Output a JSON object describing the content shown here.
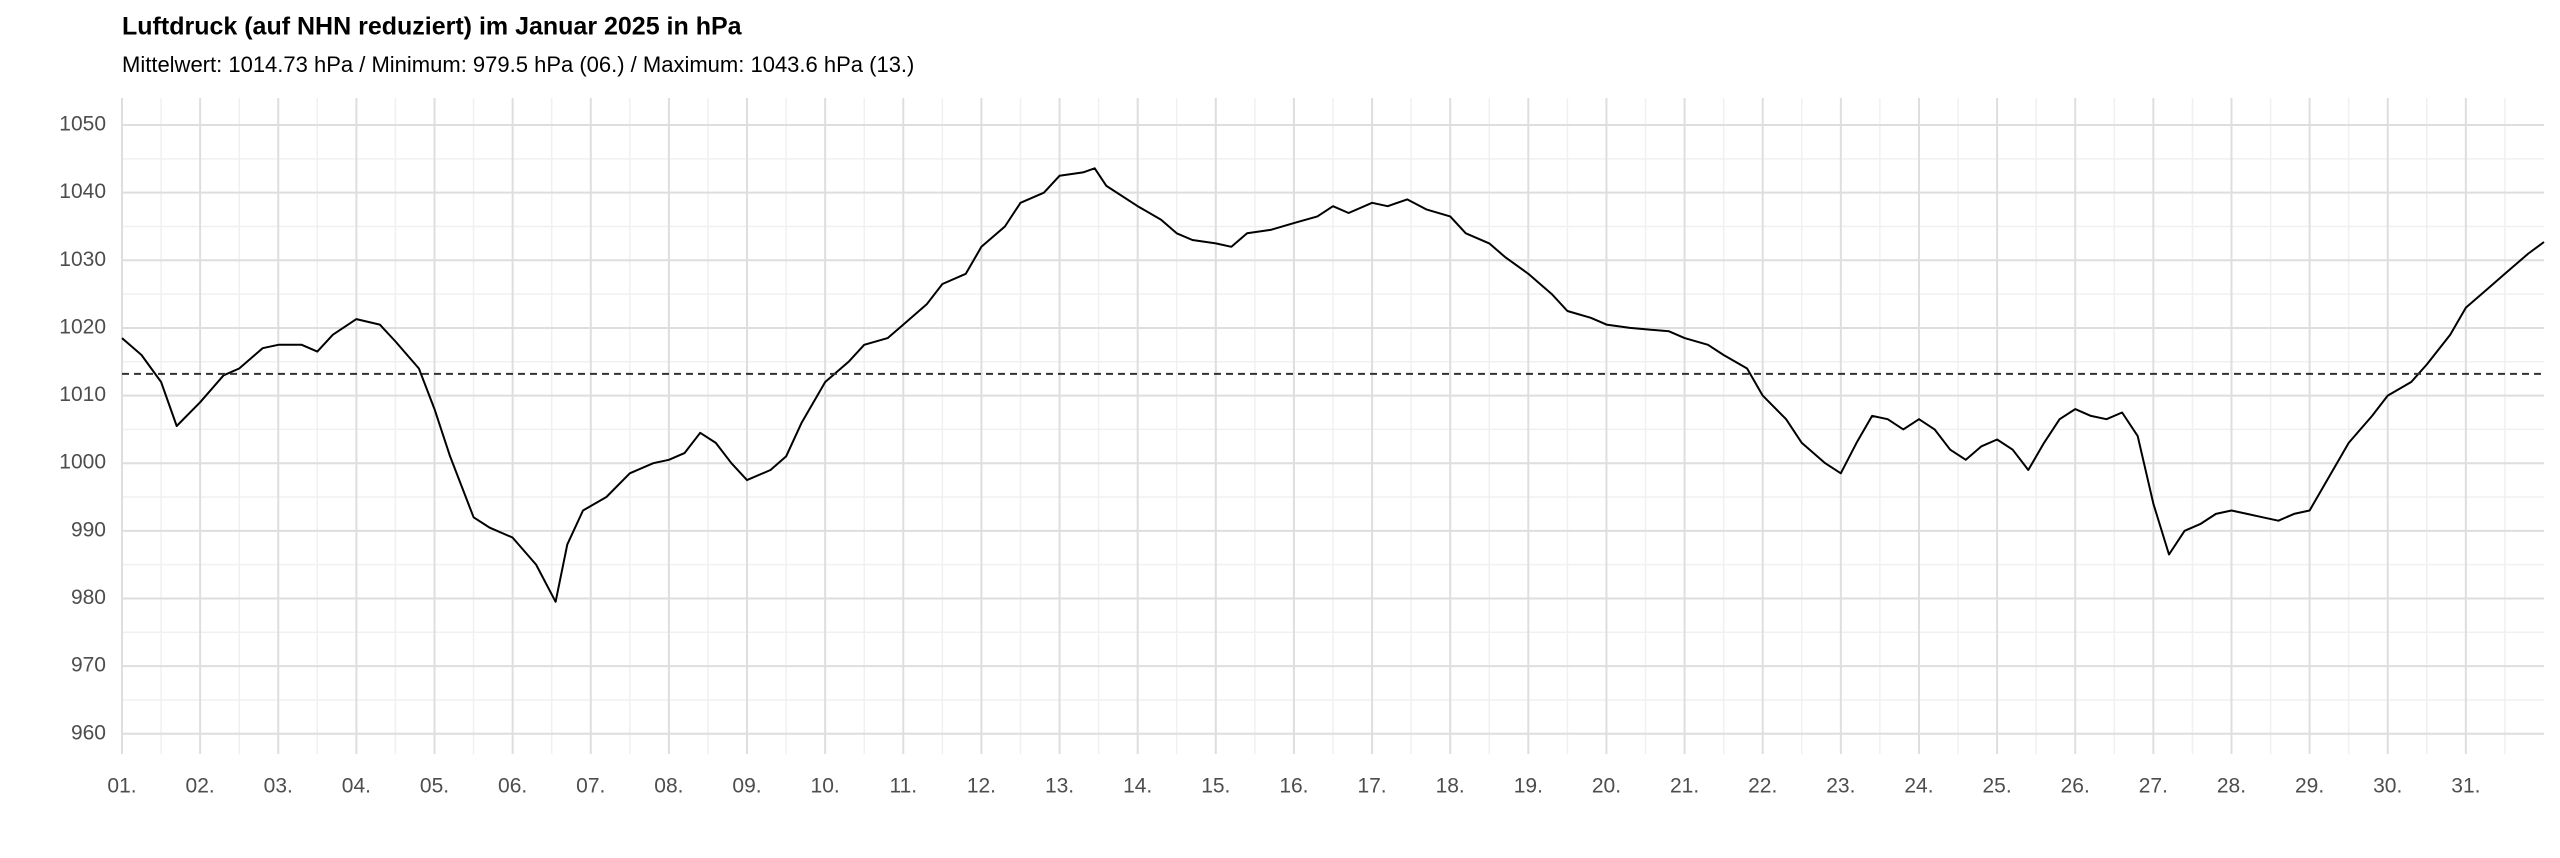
{
  "chart_data": {
    "type": "line",
    "title": "Luftdruck (auf NHN reduziert) im Januar 2025 in hPa",
    "subtitle": "Mittelwert: 1014.73 hPa / Minimum: 979.5 hPa (06.) / Maximum: 1043.6 hPa (13.)",
    "x": [
      1.0,
      1.25,
      1.5,
      1.7,
      2.0,
      2.3,
      2.5,
      2.8,
      3.0,
      3.3,
      3.5,
      3.7,
      4.0,
      4.3,
      4.5,
      4.8,
      5.0,
      5.2,
      5.5,
      5.7,
      6.0,
      6.3,
      6.55,
      6.7,
      6.9,
      7.2,
      7.5,
      7.8,
      8.0,
      8.2,
      8.4,
      8.6,
      8.8,
      9.0,
      9.3,
      9.5,
      9.7,
      10.0,
      10.3,
      10.5,
      10.8,
      11.0,
      11.3,
      11.5,
      11.8,
      12.0,
      12.3,
      12.5,
      12.8,
      13.0,
      13.3,
      13.45,
      13.6,
      14.0,
      14.3,
      14.5,
      14.7,
      15.0,
      15.2,
      15.4,
      15.7,
      16.0,
      16.3,
      16.5,
      16.7,
      17.0,
      17.2,
      17.45,
      17.7,
      18.0,
      18.2,
      18.5,
      18.7,
      19.0,
      19.3,
      19.5,
      19.8,
      20.0,
      20.3,
      20.5,
      20.8,
      21.0,
      21.3,
      21.5,
      21.8,
      22.0,
      22.3,
      22.5,
      22.8,
      23.0,
      23.2,
      23.4,
      23.6,
      23.8,
      24.0,
      24.2,
      24.4,
      24.6,
      24.8,
      25.0,
      25.2,
      25.4,
      25.6,
      25.8,
      26.0,
      26.2,
      26.4,
      26.6,
      26.8,
      27.0,
      27.2,
      27.4,
      27.6,
      27.8,
      28.0,
      28.2,
      28.4,
      28.6,
      28.8,
      29.0,
      29.2,
      29.5,
      29.8,
      30.0,
      30.3,
      30.5,
      30.8,
      31.0,
      31.3,
      31.5,
      31.8,
      32.0
    ],
    "series": [
      {
        "color": "#000000",
        "values": [
          1018.5,
          1016,
          1012,
          1005.5,
          1009,
          1013,
          1014,
          1017,
          1017.5,
          1017.5,
          1016.5,
          1019,
          1021.3,
          1020.5,
          1018,
          1014,
          1008,
          1001,
          992,
          990.5,
          989,
          985,
          979.5,
          988,
          993,
          995,
          998.5,
          1000,
          1000.5,
          1001.5,
          1004.5,
          1003,
          1000,
          997.5,
          999,
          1001,
          1006,
          1012,
          1015,
          1017.5,
          1018.5,
          1020.5,
          1023.5,
          1026.5,
          1028,
          1032,
          1035,
          1038.5,
          1040,
          1042.5,
          1043,
          1043.6,
          1041,
          1038,
          1036,
          1034,
          1033,
          1032.5,
          1032,
          1034,
          1034.5,
          1035.5,
          1036.5,
          1038,
          1037,
          1038.5,
          1038,
          1039,
          1037.5,
          1036.5,
          1034,
          1032.5,
          1030.5,
          1028,
          1025,
          1022.5,
          1021.5,
          1020.5,
          1020,
          1019.8,
          1019.5,
          1018.5,
          1017.5,
          1016,
          1014,
          1010,
          1006.5,
          1003,
          1000,
          998.5,
          1003,
          1007,
          1006.5,
          1005,
          1006.5,
          1005,
          1002,
          1000.5,
          1002.5,
          1003.5,
          1002,
          999,
          1003,
          1006.5,
          1008,
          1007,
          1006.5,
          1007.5,
          1004,
          994,
          986.5,
          990,
          991,
          992.5,
          993,
          992.5,
          992,
          991.5,
          992.5,
          993,
          997,
          1003,
          1007,
          1010,
          1012,
          1014.6,
          1019,
          1023,
          1026,
          1028,
          1031,
          1032.7
        ]
      }
    ],
    "reference_line": 1013.2,
    "xlim": [
      1,
      32
    ],
    "xticks": [
      {
        "value": 1,
        "label": "01."
      },
      {
        "value": 2,
        "label": "02."
      },
      {
        "value": 3,
        "label": "03."
      },
      {
        "value": 4,
        "label": "04."
      },
      {
        "value": 5,
        "label": "05."
      },
      {
        "value": 6,
        "label": "06."
      },
      {
        "value": 7,
        "label": "07."
      },
      {
        "value": 8,
        "label": "08."
      },
      {
        "value": 9,
        "label": "09."
      },
      {
        "value": 10,
        "label": "10."
      },
      {
        "value": 11,
        "label": "11."
      },
      {
        "value": 12,
        "label": "12."
      },
      {
        "value": 13,
        "label": "13."
      },
      {
        "value": 14,
        "label": "14."
      },
      {
        "value": 15,
        "label": "15."
      },
      {
        "value": 16,
        "label": "16."
      },
      {
        "value": 17,
        "label": "17."
      },
      {
        "value": 18,
        "label": "18."
      },
      {
        "value": 19,
        "label": "19."
      },
      {
        "value": 20,
        "label": "20."
      },
      {
        "value": 21,
        "label": "21."
      },
      {
        "value": 22,
        "label": "22."
      },
      {
        "value": 23,
        "label": "23."
      },
      {
        "value": 24,
        "label": "24."
      },
      {
        "value": 25,
        "label": "25."
      },
      {
        "value": 26,
        "label": "26."
      },
      {
        "value": 27,
        "label": "27."
      },
      {
        "value": 28,
        "label": "28."
      },
      {
        "value": 29,
        "label": "29."
      },
      {
        "value": 30,
        "label": "30."
      },
      {
        "value": 31,
        "label": "31."
      }
    ],
    "ylim": [
      957,
      1054
    ],
    "yticks": [
      960,
      970,
      980,
      990,
      1000,
      1010,
      1020,
      1030,
      1040,
      1050
    ],
    "grid": true
  }
}
